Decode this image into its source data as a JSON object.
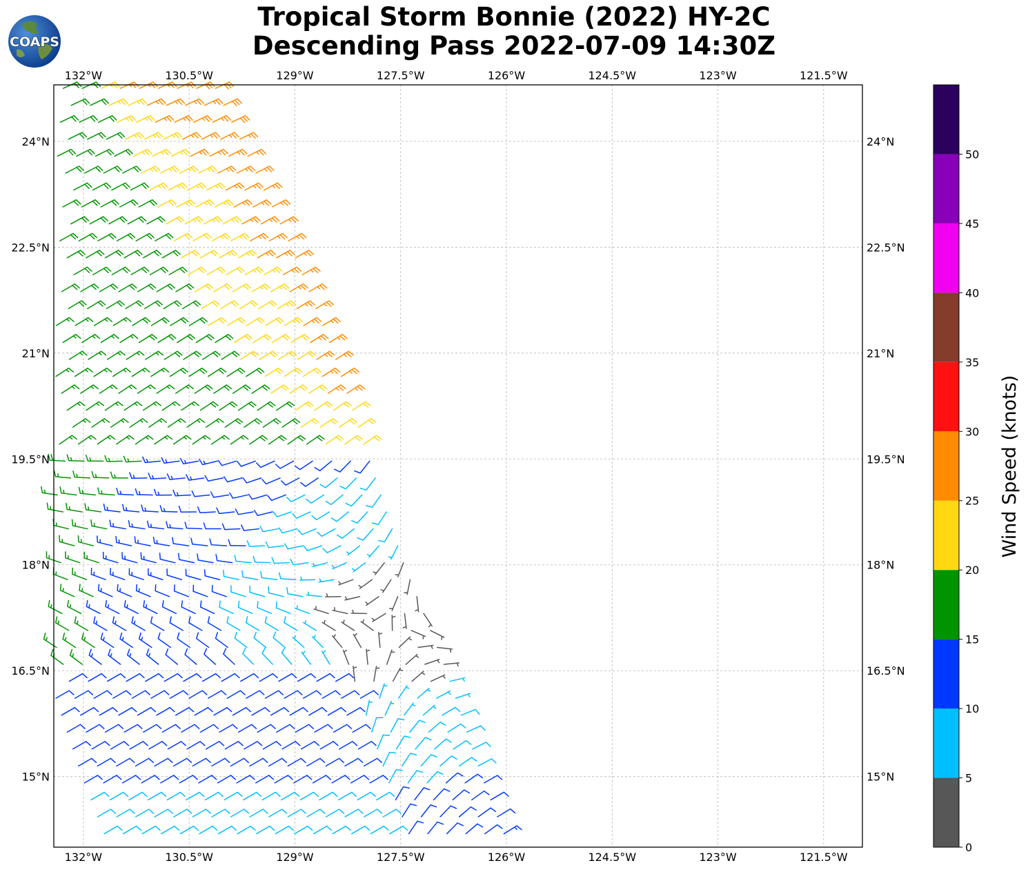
{
  "header": {
    "title_line1": "Tropical Storm Bonnie (2022) HY-2C",
    "title_line2": "Descending Pass 2022-07-09 14:30Z",
    "logo_text": "COAPS"
  },
  "axes": {
    "lon_labels": [
      "132°W",
      "130.5°W",
      "129°W",
      "127.5°W",
      "126°W",
      "124.5°W",
      "123°W",
      "121.5°W"
    ],
    "lon_values": [
      -132,
      -130.5,
      -129,
      -127.5,
      -126,
      -124.5,
      -123,
      -121.5
    ],
    "lat_labels": [
      "24°N",
      "22.5°N",
      "21°N",
      "19.5°N",
      "18°N",
      "16.5°N",
      "15°N"
    ],
    "lat_values": [
      24,
      22.5,
      21,
      19.5,
      18,
      16.5,
      15
    ],
    "lon_range": [
      -132.42,
      -120.95
    ],
    "lat_range": [
      14.0,
      24.8
    ],
    "grid": true
  },
  "colorbar": {
    "label": "Wind Speed (knots)",
    "tick_labels": [
      "0",
      "5",
      "10",
      "15",
      "20",
      "25",
      "30",
      "35",
      "40",
      "45",
      "50"
    ],
    "bins": [
      {
        "from": 0,
        "to": 5,
        "color": "#575757"
      },
      {
        "from": 5,
        "to": 10,
        "color": "#00bfff"
      },
      {
        "from": 10,
        "to": 15,
        "color": "#0038ff"
      },
      {
        "from": 15,
        "to": 20,
        "color": "#009500"
      },
      {
        "from": 20,
        "to": 25,
        "color": "#ffd812"
      },
      {
        "from": 25,
        "to": 30,
        "color": "#ff8c00"
      },
      {
        "from": 30,
        "to": 35,
        "color": "#ff1111"
      },
      {
        "from": 35,
        "to": 40,
        "color": "#853c2a"
      },
      {
        "from": 40,
        "to": 45,
        "color": "#f200f2"
      },
      {
        "from": 45,
        "to": 50,
        "color": "#8800b8"
      },
      {
        "from": 50,
        "to": 55,
        "color": "#2b005e"
      }
    ]
  },
  "wind_field": {
    "storm_center": {
      "lon": -127.6,
      "lat": 17.1
    },
    "swath_east_edge": [
      {
        "lat": 24.8,
        "lon": -130.1
      },
      {
        "lat": 22.5,
        "lon": -129.0
      },
      {
        "lat": 21.0,
        "lon": -128.4
      },
      {
        "lat": 19.5,
        "lon": -127.9
      },
      {
        "lat": 18.0,
        "lon": -127.4
      },
      {
        "lat": 16.5,
        "lon": -126.8
      },
      {
        "lat": 15.0,
        "lon": -126.3
      },
      {
        "lat": 14.1,
        "lon": -125.95
      }
    ]
  }
}
